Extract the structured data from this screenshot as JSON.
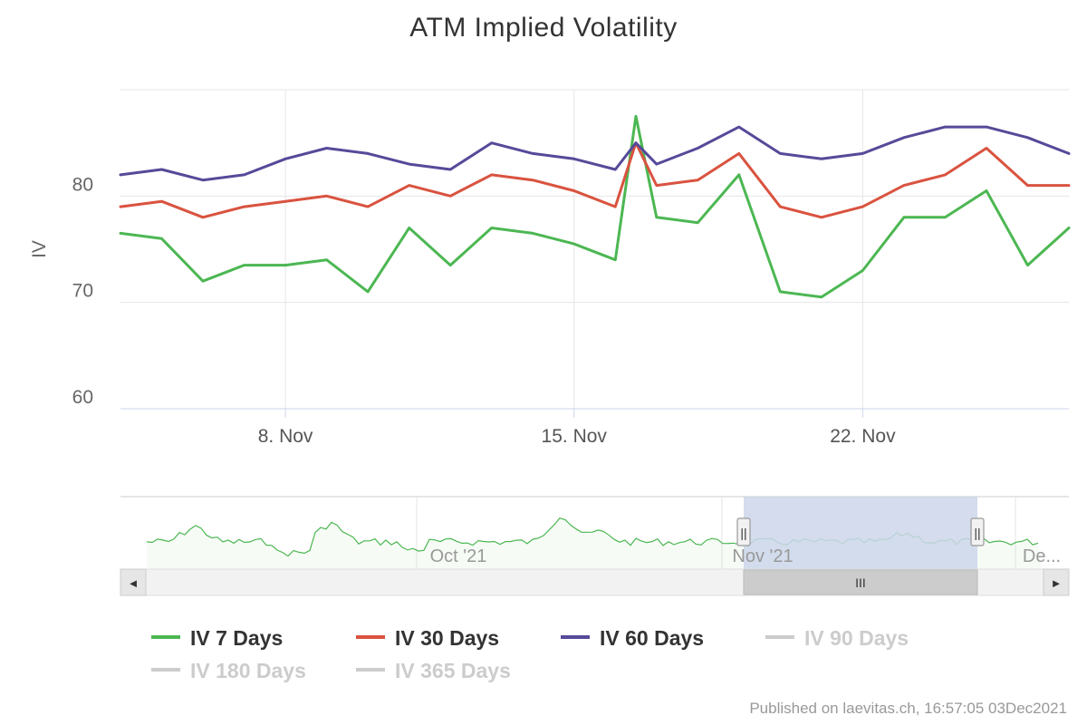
{
  "chart_data": {
    "type": "line",
    "title": "ATM Implied Volatility",
    "ylabel": "IV",
    "xlabel": "",
    "ylim": [
      60,
      90
    ],
    "y_ticks": [
      60,
      70,
      80
    ],
    "xlim": [
      "2021-11-04",
      "2021-11-27"
    ],
    "x_ticks": [
      "2021-11-08",
      "2021-11-15",
      "2021-11-22"
    ],
    "x_tick_labels": [
      "8. Nov",
      "15. Nov",
      "22. Nov"
    ],
    "grid": true,
    "legend_position": "bottom",
    "series": [
      {
        "name": "IV 7 Days",
        "color": "#4cb752",
        "visible": true,
        "x": [
          "2021-11-04",
          "2021-11-05",
          "2021-11-06",
          "2021-11-07",
          "2021-11-08",
          "2021-11-09",
          "2021-11-10",
          "2021-11-11",
          "2021-11-12",
          "2021-11-13",
          "2021-11-14",
          "2021-11-15",
          "2021-11-16",
          "2021-11-16 12:00",
          "2021-11-17",
          "2021-11-18",
          "2021-11-19",
          "2021-11-20",
          "2021-11-21",
          "2021-11-22",
          "2021-11-23",
          "2021-11-24",
          "2021-11-25",
          "2021-11-26",
          "2021-11-27"
        ],
        "values": [
          76.5,
          76.0,
          72.0,
          73.5,
          73.5,
          74.0,
          71.0,
          77.0,
          73.5,
          77.0,
          76.5,
          75.5,
          74.0,
          87.5,
          78.0,
          77.5,
          82.0,
          71.0,
          70.5,
          73.0,
          78.0,
          78.0,
          80.5,
          73.5,
          77.0
        ]
      },
      {
        "name": "IV 30 Days",
        "color": "#d9533f",
        "visible": true,
        "x": [
          "2021-11-04",
          "2021-11-05",
          "2021-11-06",
          "2021-11-07",
          "2021-11-08",
          "2021-11-09",
          "2021-11-10",
          "2021-11-11",
          "2021-11-12",
          "2021-11-13",
          "2021-11-14",
          "2021-11-15",
          "2021-11-16",
          "2021-11-16 12:00",
          "2021-11-17",
          "2021-11-18",
          "2021-11-19",
          "2021-11-20",
          "2021-11-21",
          "2021-11-22",
          "2021-11-23",
          "2021-11-24",
          "2021-11-25",
          "2021-11-26",
          "2021-11-27"
        ],
        "values": [
          79.0,
          79.5,
          78.0,
          79.0,
          79.5,
          80.0,
          79.0,
          81.0,
          80.0,
          82.0,
          81.5,
          80.5,
          79.0,
          85.0,
          81.0,
          81.5,
          84.0,
          79.0,
          78.0,
          79.0,
          81.0,
          82.0,
          84.5,
          81.0,
          81.0
        ]
      },
      {
        "name": "IV 60 Days",
        "color": "#554a99",
        "visible": true,
        "x": [
          "2021-11-04",
          "2021-11-05",
          "2021-11-06",
          "2021-11-07",
          "2021-11-08",
          "2021-11-09",
          "2021-11-10",
          "2021-11-11",
          "2021-11-12",
          "2021-11-13",
          "2021-11-14",
          "2021-11-15",
          "2021-11-16",
          "2021-11-16 12:00",
          "2021-11-17",
          "2021-11-18",
          "2021-11-19",
          "2021-11-20",
          "2021-11-21",
          "2021-11-22",
          "2021-11-23",
          "2021-11-24",
          "2021-11-25",
          "2021-11-26",
          "2021-11-27"
        ],
        "values": [
          82.0,
          82.5,
          81.5,
          82.0,
          83.5,
          84.5,
          84.0,
          83.0,
          82.5,
          85.0,
          84.0,
          83.5,
          82.5,
          85.0,
          83.0,
          84.5,
          86.5,
          84.0,
          83.5,
          84.0,
          85.5,
          86.5,
          86.5,
          85.5,
          84.0
        ]
      },
      {
        "name": "IV 90 Days",
        "color": "#cccccc",
        "visible": false
      },
      {
        "name": "IV 180 Days",
        "color": "#cccccc",
        "visible": false
      },
      {
        "name": "IV 365 Days",
        "color": "#cccccc",
        "visible": false
      }
    ]
  },
  "navigator": {
    "labels": [
      "Oct '21",
      "Nov '21",
      "De..."
    ],
    "handle_glyph": "||",
    "scrollbar_grip": "III",
    "left_arrow": "◄",
    "right_arrow": "►",
    "overview_series_color": "#4cb752",
    "selection_color": "#ccd6eb"
  },
  "credit": "Published on laevitas.ch, 16:57:05 03Dec2021"
}
